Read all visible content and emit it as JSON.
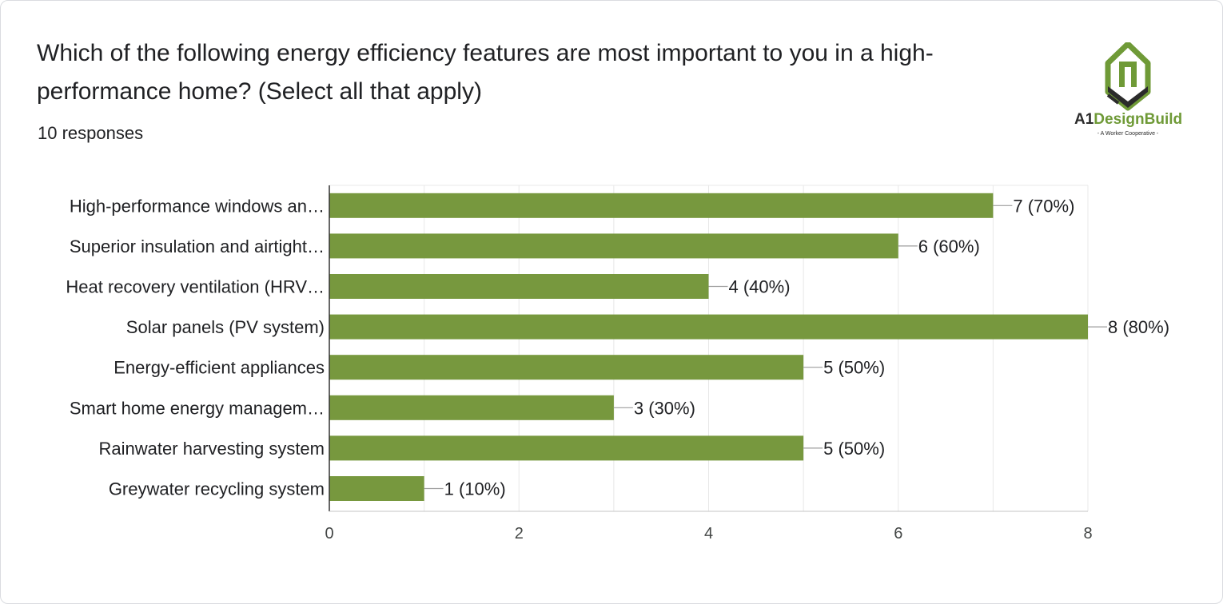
{
  "question": {
    "title": "Which of the following energy efficiency features are most important to you in a high-performance home? (Select all that apply)",
    "responses": "10 responses"
  },
  "logo": {
    "brand_part1": "A1",
    "brand_part2": "DesignBuild",
    "tagline": "- A Worker Cooperative -",
    "icon": "house-logo-icon",
    "colors": {
      "green": "#6f9a37",
      "dark": "#2b2b2b"
    }
  },
  "colors": {
    "bar": "#77983e",
    "grid": "#e8e8e8",
    "axis": "#c4c4c4",
    "leader": "#9e9e9e"
  },
  "chart_data": {
    "type": "bar",
    "orientation": "horizontal",
    "categories": [
      "High-performance windows an…",
      "Superior insulation and airtight…",
      "Heat recovery ventilation (HRV…",
      "Solar panels (PV system)",
      "Energy-efficient appliances",
      "Smart home energy managem…",
      "Rainwater harvesting system",
      "Greywater recycling system"
    ],
    "values": [
      7,
      6,
      4,
      8,
      5,
      3,
      5,
      1
    ],
    "labels": [
      "7 (70%)",
      "6 (60%)",
      "4 (40%)",
      "8 (80%)",
      "5 (50%)",
      "3 (30%)",
      "5 (50%)",
      "1 (10%)"
    ],
    "xlim": [
      0,
      8
    ],
    "xticks": [
      "0",
      "2",
      "4",
      "6",
      "8"
    ],
    "grid": true
  }
}
